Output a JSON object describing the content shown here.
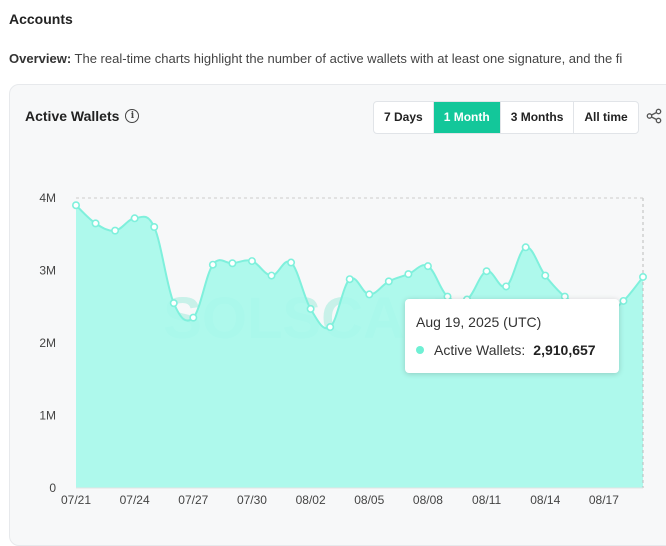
{
  "page": {
    "section_title": "Accounts",
    "overview_label": "Overview:",
    "overview_text": "The real-time charts highlight the number of active wallets with at least one signature, and the fi"
  },
  "card": {
    "title": "Active Wallets",
    "ranges": [
      "7 Days",
      "1 Month",
      "3 Months",
      "All time"
    ],
    "active_range": "1 Month",
    "info_icon": "info-icon",
    "share_icon": "share-icon"
  },
  "tooltip": {
    "date": "Aug 19, 2025 (UTC)",
    "series_label": "Active Wallets:",
    "value": "2,910,657"
  },
  "chart_data": {
    "type": "area",
    "title": "Active Wallets",
    "watermark": "SOLSCAN",
    "ylim": [
      0,
      4000000
    ],
    "y_ticks": [
      "0",
      "1M",
      "2M",
      "3M",
      "4M"
    ],
    "x_tick_labels": [
      "07/21",
      "07/24",
      "07/27",
      "07/30",
      "08/02",
      "08/05",
      "08/08",
      "08/11",
      "08/14",
      "08/17"
    ],
    "x": [
      "07/21",
      "07/22",
      "07/23",
      "07/24",
      "07/25",
      "07/26",
      "07/27",
      "07/28",
      "07/29",
      "07/30",
      "07/31",
      "08/01",
      "08/02",
      "08/03",
      "08/04",
      "08/05",
      "08/06",
      "08/07",
      "08/08",
      "08/09",
      "08/10",
      "08/11",
      "08/12",
      "08/13",
      "08/14",
      "08/15",
      "08/16",
      "08/17",
      "08/18",
      "08/19"
    ],
    "series": [
      {
        "name": "Active Wallets",
        "color": "#a7f8ea",
        "line_color": "#7ff0dc",
        "values": [
          3900000,
          3650000,
          3550000,
          3720000,
          3600000,
          2550000,
          2350000,
          3080000,
          3100000,
          3130000,
          2930000,
          3110000,
          2470000,
          2220000,
          2880000,
          2670000,
          2850000,
          2950000,
          3060000,
          2640000,
          2600000,
          2990000,
          2780000,
          3320000,
          2930000,
          2640000,
          2480000,
          2380000,
          2580000,
          2910657
        ]
      }
    ],
    "hover_index": 29,
    "grid": false
  }
}
